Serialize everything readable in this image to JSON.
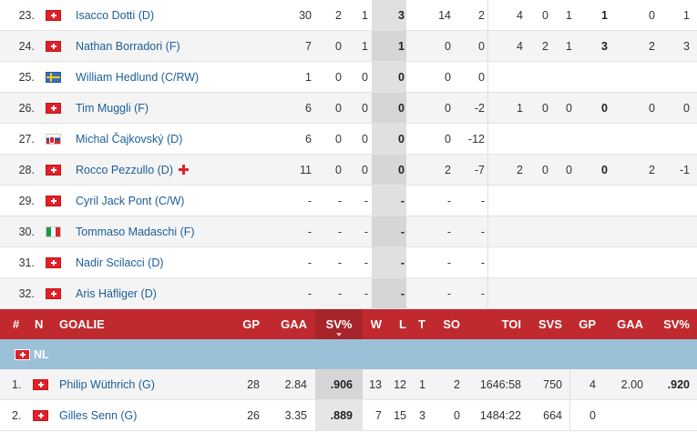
{
  "skaters": [
    {
      "num": "23.",
      "flag": "ch",
      "name": "Isacco Dotti (D)",
      "gp": "30",
      "g": "2",
      "a": "1",
      "p": "3",
      "pim": "14",
      "pm": "2",
      "pgp": "4",
      "pg": "0",
      "pa": "1",
      "pp": "1",
      "ppim": "0",
      "ppm": "1",
      "rookie": false
    },
    {
      "num": "24.",
      "flag": "ch",
      "name": "Nathan Borradori (F)",
      "gp": "7",
      "g": "0",
      "a": "1",
      "p": "1",
      "pim": "0",
      "pm": "0",
      "pgp": "4",
      "pg": "2",
      "pa": "1",
      "pp": "3",
      "ppim": "2",
      "ppm": "3",
      "rookie": false
    },
    {
      "num": "25.",
      "flag": "se",
      "name": "William Hedlund (C/RW)",
      "gp": "1",
      "g": "0",
      "a": "0",
      "p": "0",
      "pim": "0",
      "pm": "0",
      "pgp": "",
      "pg": "",
      "pa": "",
      "pp": "",
      "ppim": "",
      "ppm": "",
      "rookie": false
    },
    {
      "num": "26.",
      "flag": "ch",
      "name": "Tim Muggli (F)",
      "gp": "6",
      "g": "0",
      "a": "0",
      "p": "0",
      "pim": "0",
      "pm": "-2",
      "pgp": "1",
      "pg": "0",
      "pa": "0",
      "pp": "0",
      "ppim": "0",
      "ppm": "0",
      "rookie": false
    },
    {
      "num": "27.",
      "flag": "sk",
      "name": "Michal Čajkovský (D)",
      "gp": "6",
      "g": "0",
      "a": "0",
      "p": "0",
      "pim": "0",
      "pm": "-12",
      "pgp": "",
      "pg": "",
      "pa": "",
      "pp": "",
      "ppim": "",
      "ppm": "",
      "rookie": false
    },
    {
      "num": "28.",
      "flag": "ch",
      "name": "Rocco Pezzullo (D)",
      "gp": "11",
      "g": "0",
      "a": "0",
      "p": "0",
      "pim": "2",
      "pm": "-7",
      "pgp": "2",
      "pg": "0",
      "pa": "0",
      "pp": "0",
      "ppim": "2",
      "ppm": "-1",
      "rookie": true
    },
    {
      "num": "29.",
      "flag": "ch",
      "name": "Cyril Jack Pont (C/W)",
      "gp": "-",
      "g": "-",
      "a": "-",
      "p": "-",
      "pim": "-",
      "pm": "-",
      "pgp": "",
      "pg": "",
      "pa": "",
      "pp": "",
      "ppim": "",
      "ppm": "",
      "rookie": false
    },
    {
      "num": "30.",
      "flag": "it",
      "name": "Tommaso Madaschi (F)",
      "gp": "-",
      "g": "-",
      "a": "-",
      "p": "-",
      "pim": "-",
      "pm": "-",
      "pgp": "",
      "pg": "",
      "pa": "",
      "pp": "",
      "ppim": "",
      "ppm": "",
      "rookie": false
    },
    {
      "num": "31.",
      "flag": "ch",
      "name": "Nadir Scilacci (D)",
      "gp": "-",
      "g": "-",
      "a": "-",
      "p": "-",
      "pim": "-",
      "pm": "-",
      "pgp": "",
      "pg": "",
      "pa": "",
      "pp": "",
      "ppim": "",
      "ppm": "",
      "rookie": false
    },
    {
      "num": "32.",
      "flag": "ch",
      "name": "Aris Häfliger (D)",
      "gp": "-",
      "g": "-",
      "a": "-",
      "p": "-",
      "pim": "-",
      "pm": "-",
      "pgp": "",
      "pg": "",
      "pa": "",
      "pp": "",
      "ppim": "",
      "ppm": "",
      "rookie": false
    }
  ],
  "goalie_header": {
    "hash": "#",
    "n": "N",
    "goalie": "GOALIE",
    "gp": "GP",
    "gaa": "GAA",
    "svp": "SV%",
    "w": "W",
    "l": "L",
    "t": "T",
    "so": "SO",
    "toi": "TOI",
    "svs": "SVS",
    "pgp": "GP",
    "pgaa": "GAA",
    "psvp": "SV%"
  },
  "league": {
    "name": "NL",
    "flag": "ch"
  },
  "goalies": [
    {
      "num": "1.",
      "flag": "ch",
      "name": "Philip Wüthrich (G)",
      "gp": "28",
      "gaa": "2.84",
      "svp": ".906",
      "w": "13",
      "l": "12",
      "t": "1",
      "so": "2",
      "toi": "1646:58",
      "svs": "750",
      "pgp": "4",
      "pgaa": "2.00",
      "psvp": ".920"
    },
    {
      "num": "2.",
      "flag": "ch",
      "name": "Gilles Senn (G)",
      "gp": "26",
      "gaa": "3.35",
      "svp": ".889",
      "w": "7",
      "l": "15",
      "t": "3",
      "so": "0",
      "toi": "1484:22",
      "svs": "664",
      "pgp": "0",
      "pgaa": "",
      "psvp": ""
    }
  ],
  "colors": {
    "header_red": "#c0292e",
    "league_blue": "#9ac1d7",
    "link_blue": "#1c5f99",
    "rookie_cross": "#d9262e"
  }
}
